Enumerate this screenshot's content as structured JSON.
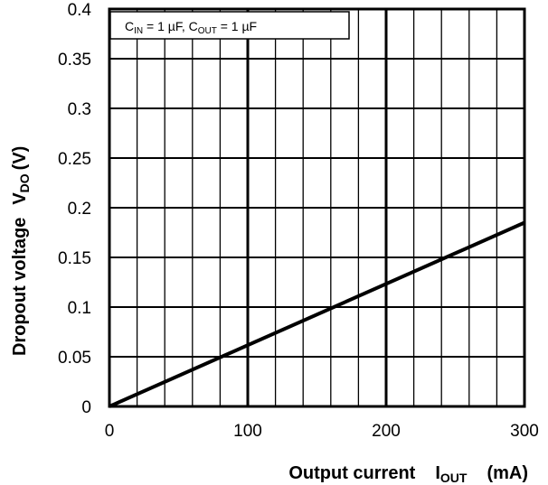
{
  "chart_data": {
    "type": "line",
    "annotation": {
      "c_in_main": "C",
      "c_in_sub": "IN",
      "c_in_value": " = 1 µF, ",
      "c_out_main": "C",
      "c_out_sub": "OUT",
      "c_out_value": " = 1 µF"
    },
    "xlabel": {
      "text": "Output current",
      "symbol_main": "I",
      "symbol_sub": "OUT",
      "unit": "(mA)"
    },
    "ylabel": {
      "text": "Dropout voltage",
      "symbol_main": "V",
      "symbol_sub": "DO",
      "unit": "(V)"
    },
    "xlim": [
      0,
      300
    ],
    "ylim": [
      0,
      0.4
    ],
    "x_ticks": [
      "0",
      "100",
      "200",
      "300"
    ],
    "y_ticks": [
      "0",
      "0.05",
      "0.1",
      "0.15",
      "0.2",
      "0.25",
      "0.3",
      "0.35",
      "0.4"
    ],
    "grid": true,
    "legend": "none",
    "series": [
      {
        "x": [
          0,
          300
        ],
        "y": [
          0,
          0.185
        ]
      }
    ]
  }
}
